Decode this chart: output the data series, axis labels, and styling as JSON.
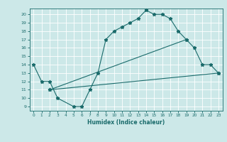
{
  "title": "",
  "xlabel": "Humidex (Indice chaleur)",
  "xlim": [
    -0.5,
    23.5
  ],
  "ylim": [
    8.5,
    20.7
  ],
  "yticks": [
    9,
    10,
    11,
    12,
    13,
    14,
    15,
    16,
    17,
    18,
    19,
    20
  ],
  "xticks": [
    0,
    1,
    2,
    3,
    4,
    5,
    6,
    7,
    8,
    9,
    10,
    11,
    12,
    13,
    14,
    15,
    16,
    17,
    18,
    19,
    20,
    21,
    22,
    23
  ],
  "bg_color": "#cce8e8",
  "line_color": "#1a6b6b",
  "grid_color": "#ffffff",
  "line1_x": [
    0,
    1,
    2,
    3,
    5,
    6,
    7,
    8,
    9,
    10,
    11,
    12,
    13,
    14,
    15,
    16,
    17,
    18,
    19,
    20,
    21,
    22,
    23
  ],
  "line1_y": [
    14,
    12,
    12,
    10,
    9,
    9,
    11,
    13,
    17,
    18,
    18.5,
    19,
    19.5,
    20.5,
    20,
    20,
    19.5,
    18,
    17,
    16,
    14,
    14,
    13
  ],
  "line2_x": [
    2,
    23
  ],
  "line2_y": [
    11,
    13
  ],
  "line3_x": [
    2,
    19
  ],
  "line3_y": [
    11,
    17
  ]
}
